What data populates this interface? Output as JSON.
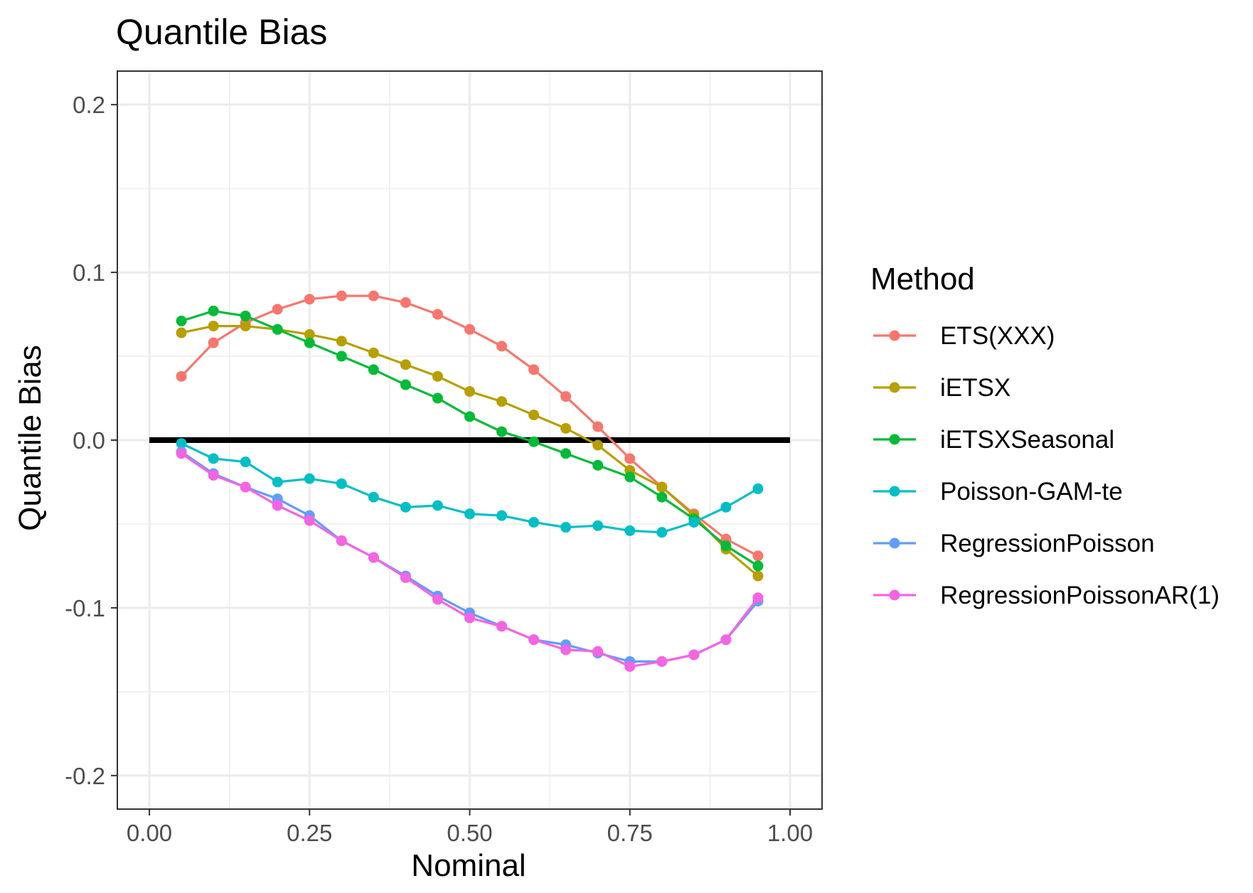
{
  "chart_data": {
    "type": "line",
    "title": "Quantile Bias",
    "xlabel": "Nominal",
    "ylabel": "Quantile Bias",
    "xlim": [
      -0.05,
      1.05
    ],
    "ylim": [
      -0.22,
      0.22
    ],
    "x_ticks": [
      {
        "value": 0.0,
        "label": "0.00"
      },
      {
        "value": 0.25,
        "label": "0.25"
      },
      {
        "value": 0.5,
        "label": "0.50"
      },
      {
        "value": 0.75,
        "label": "0.75"
      },
      {
        "value": 1.0,
        "label": "1.00"
      }
    ],
    "y_ticks": [
      {
        "value": -0.2,
        "label": "-0.2"
      },
      {
        "value": -0.1,
        "label": "-0.1"
      },
      {
        "value": 0.0,
        "label": "0.0"
      },
      {
        "value": 0.1,
        "label": "0.1"
      },
      {
        "value": 0.2,
        "label": "0.2"
      }
    ],
    "grid": true,
    "reference_line": {
      "from": [
        0.0,
        0.0
      ],
      "to": [
        1.0,
        0.0
      ],
      "color": "#000000"
    },
    "legend": {
      "title": "Method",
      "position": "right"
    },
    "x": [
      0.05,
      0.1,
      0.15,
      0.2,
      0.25,
      0.3,
      0.35,
      0.4,
      0.45,
      0.5,
      0.55,
      0.6,
      0.65,
      0.7,
      0.75,
      0.8,
      0.85,
      0.9,
      0.95
    ],
    "series": [
      {
        "name": "ETS(XXX)",
        "color": "#F8766D",
        "values": [
          0.038,
          0.058,
          0.07,
          0.078,
          0.084,
          0.086,
          0.086,
          0.082,
          0.075,
          0.066,
          0.056,
          0.042,
          0.026,
          0.008,
          -0.011,
          -0.028,
          -0.044,
          -0.059,
          -0.069
        ]
      },
      {
        "name": "iETSX",
        "color": "#B79F00",
        "values": [
          0.064,
          0.068,
          0.068,
          0.066,
          0.063,
          0.059,
          0.052,
          0.045,
          0.038,
          0.029,
          0.023,
          0.015,
          0.007,
          -0.003,
          -0.018,
          -0.028,
          -0.045,
          -0.065,
          -0.081
        ]
      },
      {
        "name": "iETSXSeasonal",
        "color": "#00BA38",
        "values": [
          0.071,
          0.077,
          0.074,
          0.066,
          0.058,
          0.05,
          0.042,
          0.033,
          0.025,
          0.014,
          0.005,
          -0.001,
          -0.008,
          -0.015,
          -0.022,
          -0.034,
          -0.047,
          -0.063,
          -0.075
        ]
      },
      {
        "name": "Poisson-GAM-te",
        "color": "#00BFC4",
        "values": [
          -0.002,
          -0.011,
          -0.013,
          -0.025,
          -0.023,
          -0.026,
          -0.034,
          -0.04,
          -0.039,
          -0.044,
          -0.045,
          -0.049,
          -0.052,
          -0.051,
          -0.054,
          -0.055,
          -0.049,
          -0.04,
          -0.029
        ]
      },
      {
        "name": "RegressionPoisson",
        "color": "#619CFF",
        "values": [
          -0.007,
          -0.02,
          -0.028,
          -0.035,
          -0.045,
          -0.06,
          -0.07,
          -0.081,
          -0.093,
          -0.103,
          -0.111,
          -0.119,
          -0.122,
          -0.127,
          -0.132,
          -0.132,
          -0.128,
          -0.119,
          -0.096
        ]
      },
      {
        "name": "RegressionPoissonAR(1)",
        "color": "#F564E3",
        "values": [
          -0.008,
          -0.021,
          -0.028,
          -0.039,
          -0.048,
          -0.06,
          -0.07,
          -0.082,
          -0.095,
          -0.106,
          -0.111,
          -0.119,
          -0.125,
          -0.126,
          -0.135,
          -0.132,
          -0.128,
          -0.119,
          -0.094
        ]
      }
    ]
  }
}
